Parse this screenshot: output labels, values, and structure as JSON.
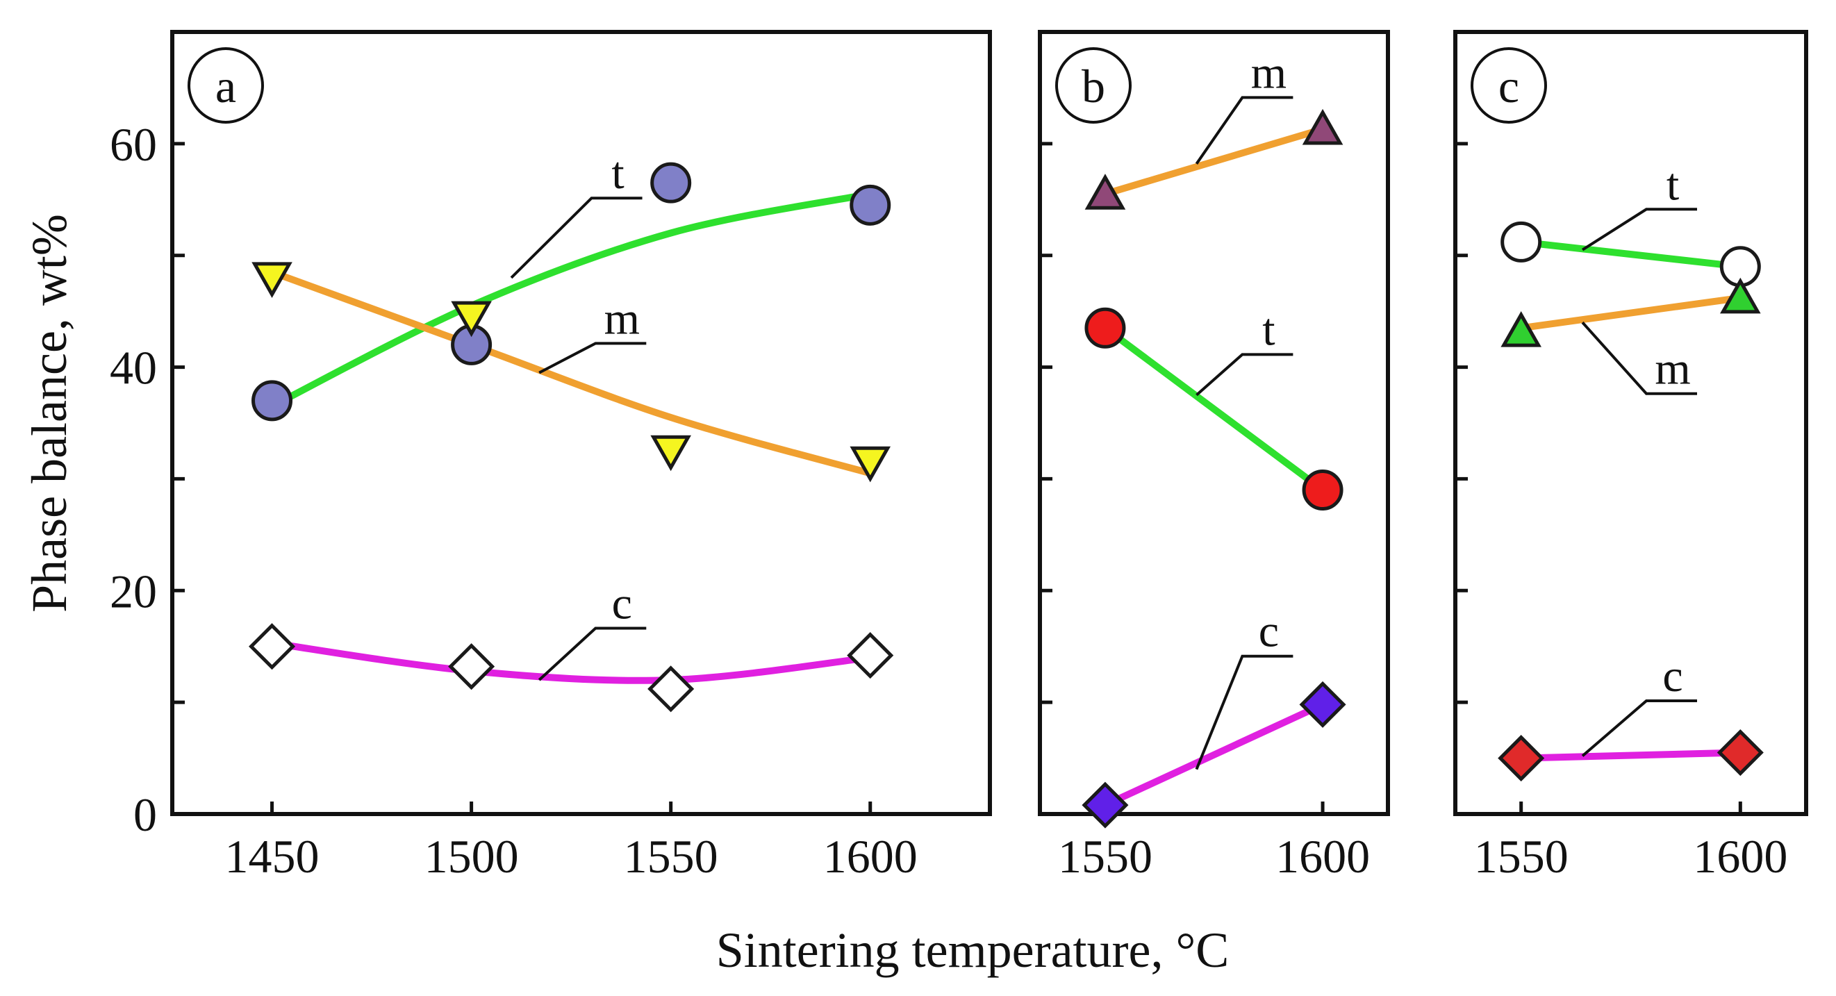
{
  "figure": {
    "ylabel": "Phase balance, wt%",
    "xlabel": "Sintering temperature, °C"
  },
  "chart_data": [
    {
      "type": "line",
      "panel_label": "a",
      "xlim": [
        1425,
        1630
      ],
      "ylim": [
        0,
        70
      ],
      "x_ticks": [
        1450,
        1500,
        1550,
        1600
      ],
      "y_ticks": [
        0,
        20,
        40,
        60
      ],
      "series": [
        {
          "name": "t",
          "color": "#2ee02e",
          "marker": "circle",
          "marker_fill": "#8080c8",
          "points": [
            [
              1450,
              37
            ],
            [
              1500,
              42
            ],
            [
              1550,
              56.5
            ],
            [
              1600,
              54.5
            ]
          ],
          "fit": [
            [
              1450,
              36.5
            ],
            [
              1500,
              45.5
            ],
            [
              1550,
              52
            ],
            [
              1600,
              55.5
            ]
          ],
          "label_anchor": [
            1510,
            48
          ],
          "label_pos": [
            1535,
            56
          ]
        },
        {
          "name": "m",
          "color": "#f0a030",
          "marker": "triangle-down",
          "marker_fill": "#f5f520",
          "points": [
            [
              1450,
              48
            ],
            [
              1500,
              44.5
            ],
            [
              1550,
              32.5
            ],
            [
              1600,
              31.5
            ]
          ],
          "fit": [
            [
              1450,
              48.5
            ],
            [
              1500,
              42
            ],
            [
              1550,
              35.5
            ],
            [
              1600,
              30.5
            ]
          ],
          "label_anchor": [
            1517,
            39.5
          ],
          "label_pos": [
            1536,
            43
          ]
        },
        {
          "name": "c",
          "color": "#e020e0",
          "marker": "diamond",
          "marker_fill": "#ffffff",
          "points": [
            [
              1450,
              15
            ],
            [
              1500,
              13.2
            ],
            [
              1550,
              11.2
            ],
            [
              1600,
              14.2
            ]
          ],
          "fit": [
            [
              1450,
              15.3
            ],
            [
              1500,
              12.8
            ],
            [
              1550,
              12
            ],
            [
              1600,
              14
            ]
          ],
          "label_anchor": [
            1517,
            12
          ],
          "label_pos": [
            1536,
            17.5
          ]
        }
      ]
    },
    {
      "type": "line",
      "panel_label": "b",
      "xlim": [
        1535,
        1615
      ],
      "ylim": [
        0,
        70
      ],
      "x_ticks": [
        1550,
        1600
      ],
      "y_ticks": [
        0,
        20,
        40,
        60
      ],
      "series": [
        {
          "name": "m",
          "color": "#f0a030",
          "marker": "triangle-up",
          "marker_fill": "#904878",
          "points": [
            [
              1550,
              55.5
            ],
            [
              1600,
              61.3
            ]
          ],
          "fit": [
            [
              1550,
              55.5
            ],
            [
              1600,
              61.3
            ]
          ],
          "label_anchor": [
            1571,
            58.2
          ],
          "label_pos": [
            1586,
            65
          ]
        },
        {
          "name": "t",
          "color": "#2ee02e",
          "marker": "circle",
          "marker_fill": "#ee1c1c",
          "points": [
            [
              1550,
              43.5
            ],
            [
              1600,
              29
            ]
          ],
          "fit": [
            [
              1550,
              43.5
            ],
            [
              1600,
              29
            ]
          ],
          "label_anchor": [
            1571,
            37.5
          ],
          "label_pos": [
            1586,
            42
          ]
        },
        {
          "name": "c",
          "color": "#e020e0",
          "marker": "diamond",
          "marker_fill": "#6020e8",
          "points": [
            [
              1550,
              0.8
            ],
            [
              1600,
              9.8
            ]
          ],
          "fit": [
            [
              1550,
              0.8
            ],
            [
              1600,
              9.8
            ]
          ],
          "label_anchor": [
            1571,
            4
          ],
          "label_pos": [
            1586,
            15
          ]
        }
      ]
    },
    {
      "type": "line",
      "panel_label": "c",
      "xlim": [
        1535,
        1615
      ],
      "ylim": [
        0,
        70
      ],
      "x_ticks": [
        1550,
        1600
      ],
      "y_ticks": [
        0,
        20,
        40,
        60
      ],
      "series": [
        {
          "name": "t",
          "color": "#2ee02e",
          "marker": "circle",
          "marker_fill": "#ffffff",
          "points": [
            [
              1550,
              51.2
            ],
            [
              1600,
              49
            ]
          ],
          "fit": [
            [
              1550,
              51.2
            ],
            [
              1600,
              49
            ]
          ],
          "label_anchor": [
            1564,
            50.5
          ],
          "label_pos": [
            1583,
            55
          ]
        },
        {
          "name": "m",
          "color": "#f0a030",
          "marker": "triangle-up",
          "marker_fill": "#30d030",
          "points": [
            [
              1550,
              43.2
            ],
            [
              1600,
              46.2
            ]
          ],
          "fit": [
            [
              1550,
              43.5
            ],
            [
              1600,
              46.2
            ]
          ],
          "label_anchor": [
            1564,
            44
          ],
          "label_pos": [
            1583,
            38.5
          ]
        },
        {
          "name": "c",
          "color": "#e020e0",
          "marker": "diamond",
          "marker_fill": "#e02a2a",
          "points": [
            [
              1550,
              5
            ],
            [
              1600,
              5.5
            ]
          ],
          "fit": [
            [
              1550,
              5
            ],
            [
              1600,
              5.5
            ]
          ],
          "label_anchor": [
            1564,
            5.2
          ],
          "label_pos": [
            1583,
            11
          ]
        }
      ]
    }
  ]
}
